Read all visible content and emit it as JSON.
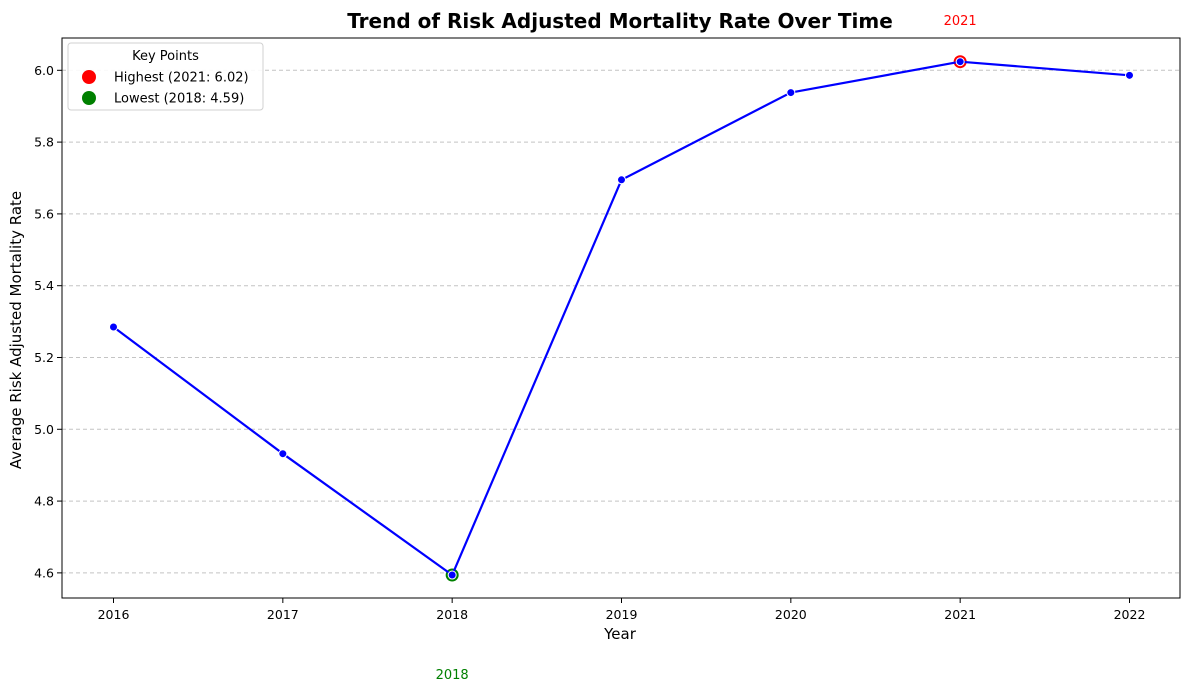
{
  "chart_data": {
    "type": "line",
    "title": "Trend of Risk Adjusted Mortality Rate Over Time",
    "xlabel": "Year",
    "ylabel": "Average Risk Adjusted Mortality Rate",
    "x": [
      "2016",
      "2017",
      "2018",
      "2019",
      "2020",
      "2021",
      "2022"
    ],
    "series": [
      {
        "values": [
          5.285,
          4.932,
          4.594,
          5.695,
          5.938,
          6.024,
          5.986
        ],
        "color": "#0000ff"
      }
    ],
    "ylim": [
      4.53,
      6.09
    ],
    "yticks": [
      "4.6",
      "4.8",
      "5.0",
      "5.2",
      "5.4",
      "5.6",
      "5.8",
      "6.0"
    ],
    "grid": "y-dashed",
    "legend": {
      "title": "Key Points",
      "placement": "upper-left",
      "items": [
        {
          "label": "Highest (2021: 6.02)",
          "color": "#ff0000"
        },
        {
          "label": "Lowest (2018: 4.59)",
          "color": "#008000"
        }
      ]
    },
    "highlights": [
      {
        "x": "2021",
        "y": 6.024,
        "color": "#ff0000"
      },
      {
        "x": "2018",
        "y": 4.594,
        "color": "#008000"
      }
    ],
    "annotations": [
      {
        "text": "2021",
        "color": "#ff0000",
        "placement": "above-plot"
      },
      {
        "text": "2018",
        "color": "#008000",
        "placement": "below-axis"
      }
    ]
  }
}
